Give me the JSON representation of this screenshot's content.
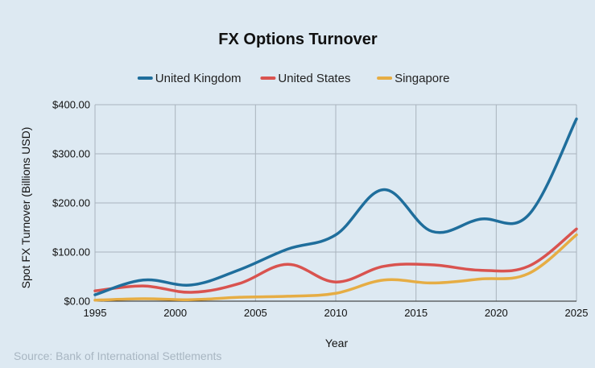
{
  "chart_data": {
    "type": "line",
    "title": "FX Options Turnover",
    "xlabel": "Year",
    "ylabel": "Spot FX Turnover (Billions USD)",
    "xlim": [
      1995,
      2025
    ],
    "ylim": [
      0,
      400
    ],
    "x_ticks": [
      "1995",
      "2000",
      "2005",
      "2010",
      "2015",
      "2020",
      "2025"
    ],
    "y_ticks": [
      "$0.00",
      "$100.00",
      "$200.00",
      "$300.00",
      "$400.00"
    ],
    "grid": true,
    "legend_position": "top-center",
    "x": [
      1995,
      1998,
      2001,
      2004,
      2007,
      2010,
      2013,
      2016,
      2019,
      2022,
      2025
    ],
    "series": [
      {
        "name": "United Kingdom",
        "color": "#1f6e9c",
        "values": [
          13,
          43,
          33,
          64,
          106,
          135,
          227,
          142,
          167,
          175,
          371
        ]
      },
      {
        "name": "United States",
        "color": "#d9534f",
        "values": [
          21,
          31,
          18,
          36,
          75,
          39,
          71,
          74,
          63,
          71,
          147
        ]
      },
      {
        "name": "Singapore",
        "color": "#e6ad44",
        "values": [
          2,
          5,
          3,
          8,
          10,
          16,
          43,
          37,
          45,
          56,
          135
        ]
      }
    ],
    "source": "Source: Bank of International Settlements"
  }
}
